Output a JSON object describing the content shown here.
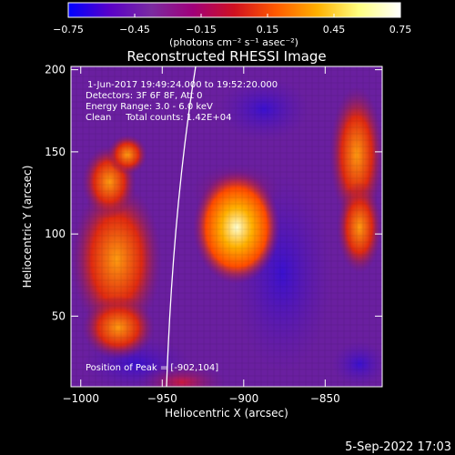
{
  "colorbar": {
    "ticks": [
      -0.75,
      -0.45,
      -0.15,
      0.15,
      0.45,
      0.75
    ],
    "tick_labels": [
      "−0.75",
      "−0.45",
      "−0.15",
      "0.15",
      "0.45",
      "0.75"
    ],
    "range": [
      -0.75,
      0.75
    ],
    "colors": [
      "#0000ff",
      "#5a00c8",
      "#7a2ba0",
      "#a0007a",
      "#d01020",
      "#ff5a00",
      "#ffb000",
      "#ffff80",
      "#ffffff"
    ]
  },
  "chart_data": {
    "type": "heatmap",
    "title": "Reconstructed RHESSI Image",
    "xlabel": "Heliocentric X (arcsec)",
    "ylabel": "Heliocentric Y (arcsec)",
    "unit_label": "(photons cm⁻² s⁻¹ asec⁻²)",
    "xlim": [
      -1006,
      -815
    ],
    "ylim": [
      7,
      202
    ],
    "xticks": [
      -1000,
      -950,
      -900,
      -850
    ],
    "xtick_labels": [
      "−1000",
      "−950",
      "−900",
      "−850"
    ],
    "yticks": [
      50,
      100,
      150,
      200
    ],
    "ytick_labels": [
      "50",
      "100",
      "150",
      "200"
    ],
    "peak": {
      "x": -902,
      "y": 104
    },
    "annotations": [
      "1-Jun-2017 19:49:24.000 to 19:52:20.000",
      "Detectors: 3F 6F 8F, Att 0",
      "Energy Range: 3.0 - 6.0 keV",
      "Clean     Total counts: 1.42E+04",
      "Position of Peak = [-902,104]"
    ]
  },
  "footer": {
    "timestamp": "5-Sep-2022 17:03"
  }
}
